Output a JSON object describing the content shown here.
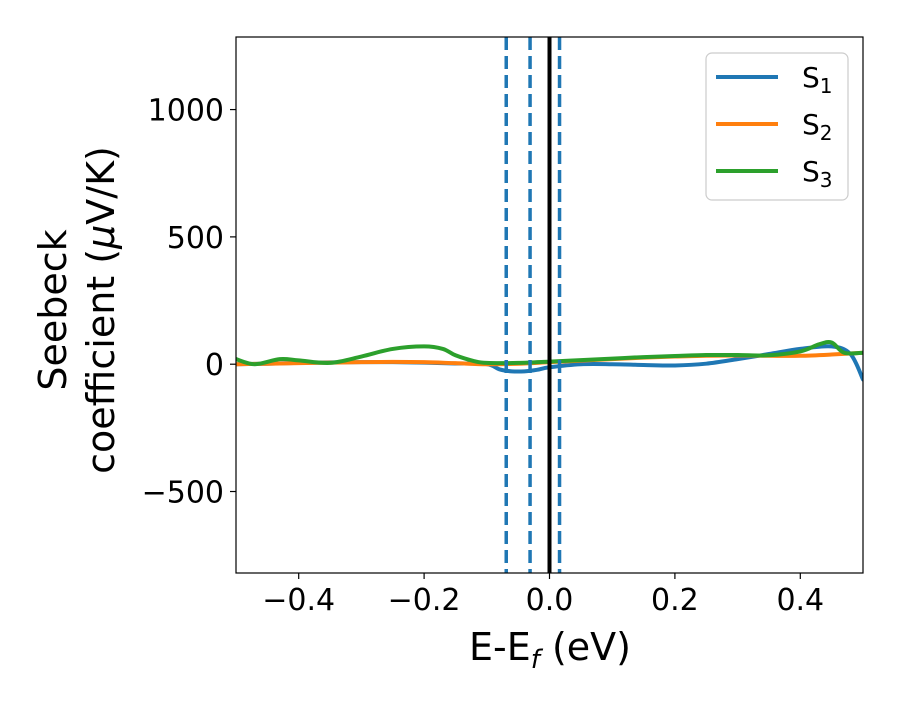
{
  "chart_data": {
    "type": "line",
    "xlabel": "E-E",
    "xlabel_sub": "f",
    "xlabel_unit": " (eV)",
    "ylabel_line1": "Seebeck",
    "ylabel_line2": "coefficient  (",
    "ylabel_mu": "μ",
    "ylabel_unit": "V/K)",
    "xlim": [
      -0.5,
      0.5
    ],
    "ylim": [
      -820,
      1285
    ],
    "xticks": [
      -0.4,
      -0.2,
      0.0,
      0.2,
      0.4
    ],
    "xtick_labels": [
      "−0.4",
      "−0.2",
      "0.0",
      "0.2",
      "0.4"
    ],
    "yticks": [
      -500,
      0,
      500,
      1000
    ],
    "ytick_labels": [
      "−500",
      "0",
      "500",
      "1000"
    ],
    "grid": false,
    "legend": {
      "placement": "top-right",
      "entries": [
        {
          "base": "S",
          "sub": "1"
        },
        {
          "base": "S",
          "sub": "2"
        },
        {
          "base": "S",
          "sub": "3"
        }
      ]
    },
    "reference_lines": [
      {
        "x": 0.0,
        "style": "solid",
        "color": "#000000"
      },
      {
        "x": -0.069,
        "style": "dashed",
        "color": "#1f77b4"
      },
      {
        "x": -0.031,
        "style": "dashed",
        "color": "#1f77b4"
      },
      {
        "x": 0.016,
        "style": "dashed",
        "color": "#1f77b4"
      }
    ],
    "series": [
      {
        "name": "S1",
        "color": "#1f77b4",
        "x": [
          -0.5,
          -0.45,
          -0.4,
          -0.35,
          -0.3,
          -0.25,
          -0.2,
          -0.15,
          -0.1,
          -0.08,
          -0.06,
          -0.04,
          -0.02,
          0.0,
          0.05,
          0.1,
          0.15,
          0.2,
          0.25,
          0.3,
          0.35,
          0.4,
          0.45,
          0.48,
          0.5
        ],
        "y": [
          0,
          2,
          5,
          7,
          8,
          8,
          6,
          3,
          0,
          -20,
          -28,
          -28,
          -22,
          -12,
          0,
          0,
          -3,
          -5,
          2,
          20,
          40,
          60,
          70,
          40,
          -60
        ]
      },
      {
        "name": "S2",
        "color": "#ff7f0e",
        "x": [
          -0.5,
          -0.45,
          -0.4,
          -0.35,
          -0.3,
          -0.25,
          -0.2,
          -0.15,
          -0.1,
          -0.05,
          0.0,
          0.05,
          0.1,
          0.15,
          0.2,
          0.25,
          0.3,
          0.35,
          0.4,
          0.45,
          0.5
        ],
        "y": [
          0,
          2,
          4,
          6,
          8,
          9,
          8,
          4,
          0,
          2,
          8,
          14,
          20,
          26,
          30,
          33,
          34,
          33,
          33,
          38,
          45
        ]
      },
      {
        "name": "S3",
        "color": "#2ca02c",
        "x": [
          -0.5,
          -0.47,
          -0.43,
          -0.4,
          -0.35,
          -0.3,
          -0.25,
          -0.2,
          -0.17,
          -0.15,
          -0.12,
          -0.1,
          -0.05,
          0.0,
          0.05,
          0.1,
          0.15,
          0.2,
          0.25,
          0.3,
          0.35,
          0.4,
          0.43,
          0.45,
          0.47,
          0.5
        ],
        "y": [
          20,
          0,
          20,
          15,
          5,
          30,
          60,
          70,
          60,
          35,
          12,
          5,
          5,
          10,
          16,
          22,
          28,
          32,
          36,
          36,
          35,
          50,
          78,
          85,
          45,
          45
        ]
      }
    ]
  }
}
